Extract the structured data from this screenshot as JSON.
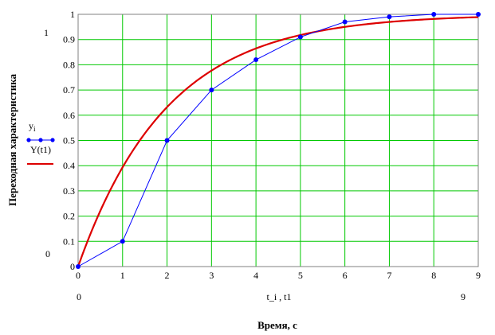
{
  "chart_data": {
    "type": "line",
    "title": "",
    "xlabel": "Время, с",
    "ylabel": "Переходная характеристика",
    "x_axis_vars": "t_i , t1",
    "xlim": [
      0,
      9
    ],
    "ylim": [
      0,
      1
    ],
    "x_ticks": [
      "0",
      "1",
      "2",
      "3",
      "4",
      "5",
      "6",
      "7",
      "8",
      "9"
    ],
    "y_ticks": [
      "0",
      "0.1",
      "0.2",
      "0.3",
      "0.4",
      "0.5",
      "0.6",
      "0.7",
      "0.8",
      "0.9",
      "1"
    ],
    "grid": true,
    "legend_position": "left",
    "corner_labels": {
      "y_max": "1",
      "y_min": "0",
      "x_min": "0",
      "x_max": "9"
    },
    "series": [
      {
        "name": "y_i",
        "legend_main": "y",
        "legend_sub": "i",
        "color": "#0000ff",
        "marker": "dot",
        "x": [
          0,
          1,
          2,
          3,
          4,
          5,
          6,
          7,
          8,
          9
        ],
        "y": [
          0,
          0.1,
          0.5,
          0.7,
          0.82,
          0.91,
          0.97,
          0.99,
          1.0,
          1.0
        ]
      },
      {
        "name": "Y(t1)",
        "legend_main": "Y(t1)",
        "color": "#dd0000",
        "marker": "none",
        "function": "1 - exp(-x/2)",
        "x_range": [
          0,
          9
        ]
      }
    ]
  }
}
